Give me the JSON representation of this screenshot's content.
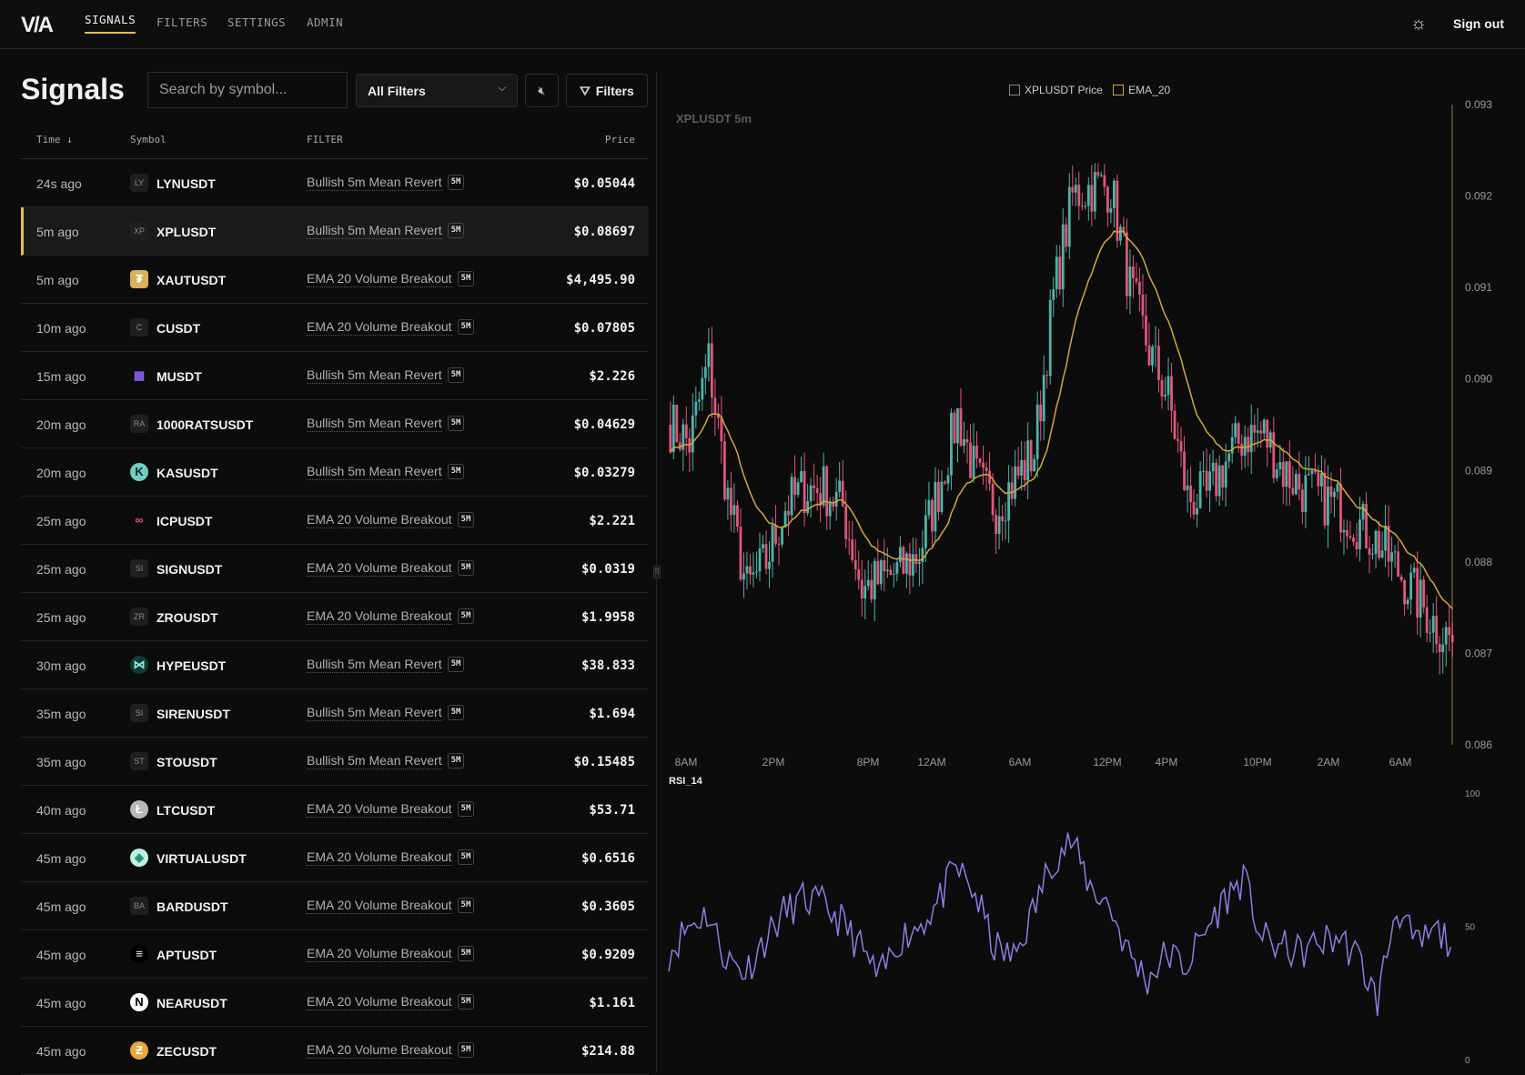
{
  "nav": {
    "logo": "V/A",
    "tabs": [
      {
        "label": "SIGNALS",
        "active": true
      },
      {
        "label": "FILTERS"
      },
      {
        "label": "SETTINGS"
      },
      {
        "label": "ADMIN"
      }
    ],
    "theme_icon": "sun-icon",
    "sign_out": "Sign out"
  },
  "page": {
    "title": "Signals",
    "search_placeholder": "Search by symbol...",
    "filter_select": "All Filters",
    "mute_icon": "speaker-muted-icon",
    "filters_button": "Filters"
  },
  "table": {
    "headers": {
      "time": "Time ↓",
      "symbol": "Symbol",
      "filter": "FILTER",
      "price": "Price"
    },
    "rows": [
      {
        "time": "24s ago",
        "symbol": "LYNUSDT",
        "icon": "LY",
        "filter": "Bullish 5m Mean Revert",
        "tf": "5M",
        "price": "$0.05044"
      },
      {
        "time": "5m ago",
        "symbol": "XPLUSDT",
        "icon": "XP",
        "filter": "Bullish 5m Mean Revert",
        "tf": "5M",
        "price": "$0.08697",
        "selected": true
      },
      {
        "time": "5m ago",
        "symbol": "XAUTUSDT",
        "icon": "gold-tether-icon",
        "filter": "EMA 20 Volume Breakout",
        "tf": "5M",
        "price": "$4,495.90"
      },
      {
        "time": "10m ago",
        "symbol": "CUSDT",
        "icon": "C",
        "filter": "EMA 20 Volume Breakout",
        "tf": "5M",
        "price": "$0.07805"
      },
      {
        "time": "15m ago",
        "symbol": "MUSDT",
        "icon": "purple-castle-icon",
        "filter": "Bullish 5m Mean Revert",
        "tf": "5M",
        "price": "$2.226"
      },
      {
        "time": "20m ago",
        "symbol": "1000RATSUSDT",
        "icon": "RA",
        "filter": "Bullish 5m Mean Revert",
        "tf": "5M",
        "price": "$0.04629"
      },
      {
        "time": "20m ago",
        "symbol": "KASUSDT",
        "icon": "kaspa-icon",
        "filter": "Bullish 5m Mean Revert",
        "tf": "5M",
        "price": "$0.03279"
      },
      {
        "time": "25m ago",
        "symbol": "ICPUSDT",
        "icon": "infinity-icon",
        "filter": "EMA 20 Volume Breakout",
        "tf": "5M",
        "price": "$2.221"
      },
      {
        "time": "25m ago",
        "symbol": "SIGNUSDT",
        "icon": "SI",
        "filter": "EMA 20 Volume Breakout",
        "tf": "5M",
        "price": "$0.0319"
      },
      {
        "time": "25m ago",
        "symbol": "ZROUSDT",
        "icon": "ZR",
        "filter": "EMA 20 Volume Breakout",
        "tf": "5M",
        "price": "$1.9958"
      },
      {
        "time": "30m ago",
        "symbol": "HYPEUSDT",
        "icon": "hyperliquid-icon",
        "filter": "Bullish 5m Mean Revert",
        "tf": "5M",
        "price": "$38.833"
      },
      {
        "time": "35m ago",
        "symbol": "SIRENUSDT",
        "icon": "SI",
        "filter": "Bullish 5m Mean Revert",
        "tf": "5M",
        "price": "$1.694"
      },
      {
        "time": "35m ago",
        "symbol": "STOUSDT",
        "icon": "ST",
        "filter": "Bullish 5m Mean Revert",
        "tf": "5M",
        "price": "$0.15485"
      },
      {
        "time": "40m ago",
        "symbol": "LTCUSDT",
        "icon": "litecoin-icon",
        "filter": "EMA 20 Volume Breakout",
        "tf": "5M",
        "price": "$53.71"
      },
      {
        "time": "45m ago",
        "symbol": "VIRTUALUSDT",
        "icon": "virtual-icon",
        "filter": "EMA 20 Volume Breakout",
        "tf": "5M",
        "price": "$0.6516"
      },
      {
        "time": "45m ago",
        "symbol": "BARDUSDT",
        "icon": "BA",
        "filter": "EMA 20 Volume Breakout",
        "tf": "5M",
        "price": "$0.3605"
      },
      {
        "time": "45m ago",
        "symbol": "APTUSDT",
        "icon": "aptos-icon",
        "filter": "EMA 20 Volume Breakout",
        "tf": "5M",
        "price": "$0.9209"
      },
      {
        "time": "45m ago",
        "symbol": "NEARUSDT",
        "icon": "near-icon",
        "filter": "EMA 20 Volume Breakout",
        "tf": "5M",
        "price": "$1.161"
      },
      {
        "time": "45m ago",
        "symbol": "ZECUSDT",
        "icon": "zcash-icon",
        "filter": "EMA 20 Volume Breakout",
        "tf": "5M",
        "price": "$214.88"
      }
    ]
  },
  "chart_data": {
    "type": "candlestick",
    "title": "XPLUSDT 5m",
    "legend": [
      "XPLUSDT Price",
      "EMA_20"
    ],
    "legend_placement": "top",
    "colors": {
      "up": "#4fb3a9",
      "down": "#e0567a",
      "ema": "#d4a838",
      "rsi": "#8b7fe0",
      "accent": "#e2c23b"
    },
    "y_ticks": [
      "0.093",
      "0.092",
      "0.091",
      "0.090",
      "0.089",
      "0.088",
      "0.087",
      "0.086"
    ],
    "ylim": [
      0.086,
      0.093
    ],
    "x_ticks": [
      "8AM",
      "2PM",
      "8PM",
      "12AM",
      "6AM",
      "12PM",
      "4PM",
      "10PM",
      "2AM",
      "6AM"
    ],
    "price_path": [
      0.0895,
      0.0893,
      0.0902,
      0.0887,
      0.0877,
      0.088,
      0.0886,
      0.0888,
      0.0888,
      0.0886,
      0.0877,
      0.0878,
      0.0879,
      0.0881,
      0.0888,
      0.0896,
      0.0889,
      0.0886,
      0.0889,
      0.0892,
      0.0909,
      0.092,
      0.0921,
      0.0921,
      0.091,
      0.0903,
      0.0898,
      0.0887,
      0.0887,
      0.0891,
      0.0894,
      0.0894,
      0.089,
      0.0888,
      0.0887,
      0.0886,
      0.0884,
      0.0882,
      0.0879,
      0.0876,
      0.0873,
      0.0871
    ],
    "rsi": {
      "label": "RSI_14",
      "y_ticks": [
        "100",
        "50",
        "0"
      ],
      "ylim": [
        0,
        100
      ],
      "values": [
        40,
        50,
        55,
        38,
        33,
        45,
        55,
        60,
        58,
        52,
        42,
        30,
        45,
        50,
        58,
        72,
        62,
        42,
        38,
        55,
        75,
        82,
        65,
        58,
        40,
        30,
        40,
        35,
        48,
        60,
        68,
        45,
        42,
        40,
        44,
        46,
        38,
        22,
        58,
        42,
        48,
        44
      ]
    }
  }
}
